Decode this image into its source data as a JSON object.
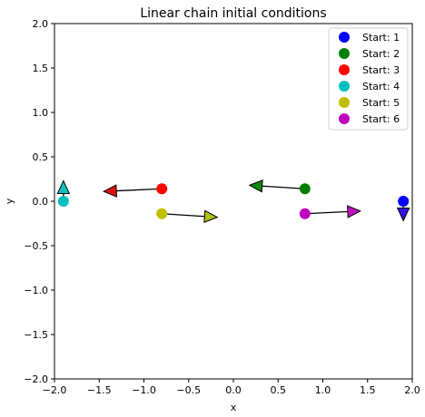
{
  "chart_data": {
    "type": "scatter",
    "title": "Linear chain initial conditions",
    "xlabel": "x",
    "ylabel": "y",
    "xlim": [
      -2.0,
      2.0
    ],
    "ylim": [
      -2.0,
      2.0
    ],
    "xticks": [
      "−2.0",
      "−1.5",
      "−1.0",
      "−0.5",
      "0.0",
      "0.5",
      "1.0",
      "1.5",
      "2.0"
    ],
    "xtick_values": [
      -2.0,
      -1.5,
      -1.0,
      -0.5,
      0.0,
      0.5,
      1.0,
      1.5,
      2.0
    ],
    "yticks": [
      "−2.0",
      "−1.5",
      "−1.0",
      "−0.5",
      "0.0",
      "0.5",
      "1.0",
      "1.5",
      "2.0"
    ],
    "ytick_values": [
      -2.0,
      -1.5,
      -1.0,
      -0.5,
      0.0,
      0.5,
      1.0,
      1.5,
      2.0
    ],
    "grid": false,
    "legend_position": "top-right",
    "series": [
      {
        "name": "Start: 1",
        "color": "#0000ff",
        "x": 1.9,
        "y": 0.0,
        "vx": 0.0,
        "vy": -0.22,
        "arrow_color": "#3a10e0"
      },
      {
        "name": "Start: 2",
        "color": "#008000",
        "x": 0.8,
        "y": 0.14,
        "vx": -0.62,
        "vy": 0.04,
        "arrow_color": "#0a8a0a"
      },
      {
        "name": "Start: 3",
        "color": "#ff0000",
        "x": -0.8,
        "y": 0.14,
        "vx": -0.65,
        "vy": -0.03,
        "arrow_color": "#e01010"
      },
      {
        "name": "Start: 4",
        "color": "#00bfbf",
        "x": -1.9,
        "y": 0.0,
        "vx": 0.0,
        "vy": 0.23,
        "arrow_color": "#10c0c0"
      },
      {
        "name": "Start: 5",
        "color": "#bfbf00",
        "x": -0.8,
        "y": -0.14,
        "vx": 0.62,
        "vy": -0.04,
        "arrow_color": "#b0c010"
      },
      {
        "name": "Start: 6",
        "color": "#bf00bf",
        "x": 0.8,
        "y": -0.14,
        "vx": 0.62,
        "vy": 0.03,
        "arrow_color": "#c010c0"
      }
    ]
  }
}
